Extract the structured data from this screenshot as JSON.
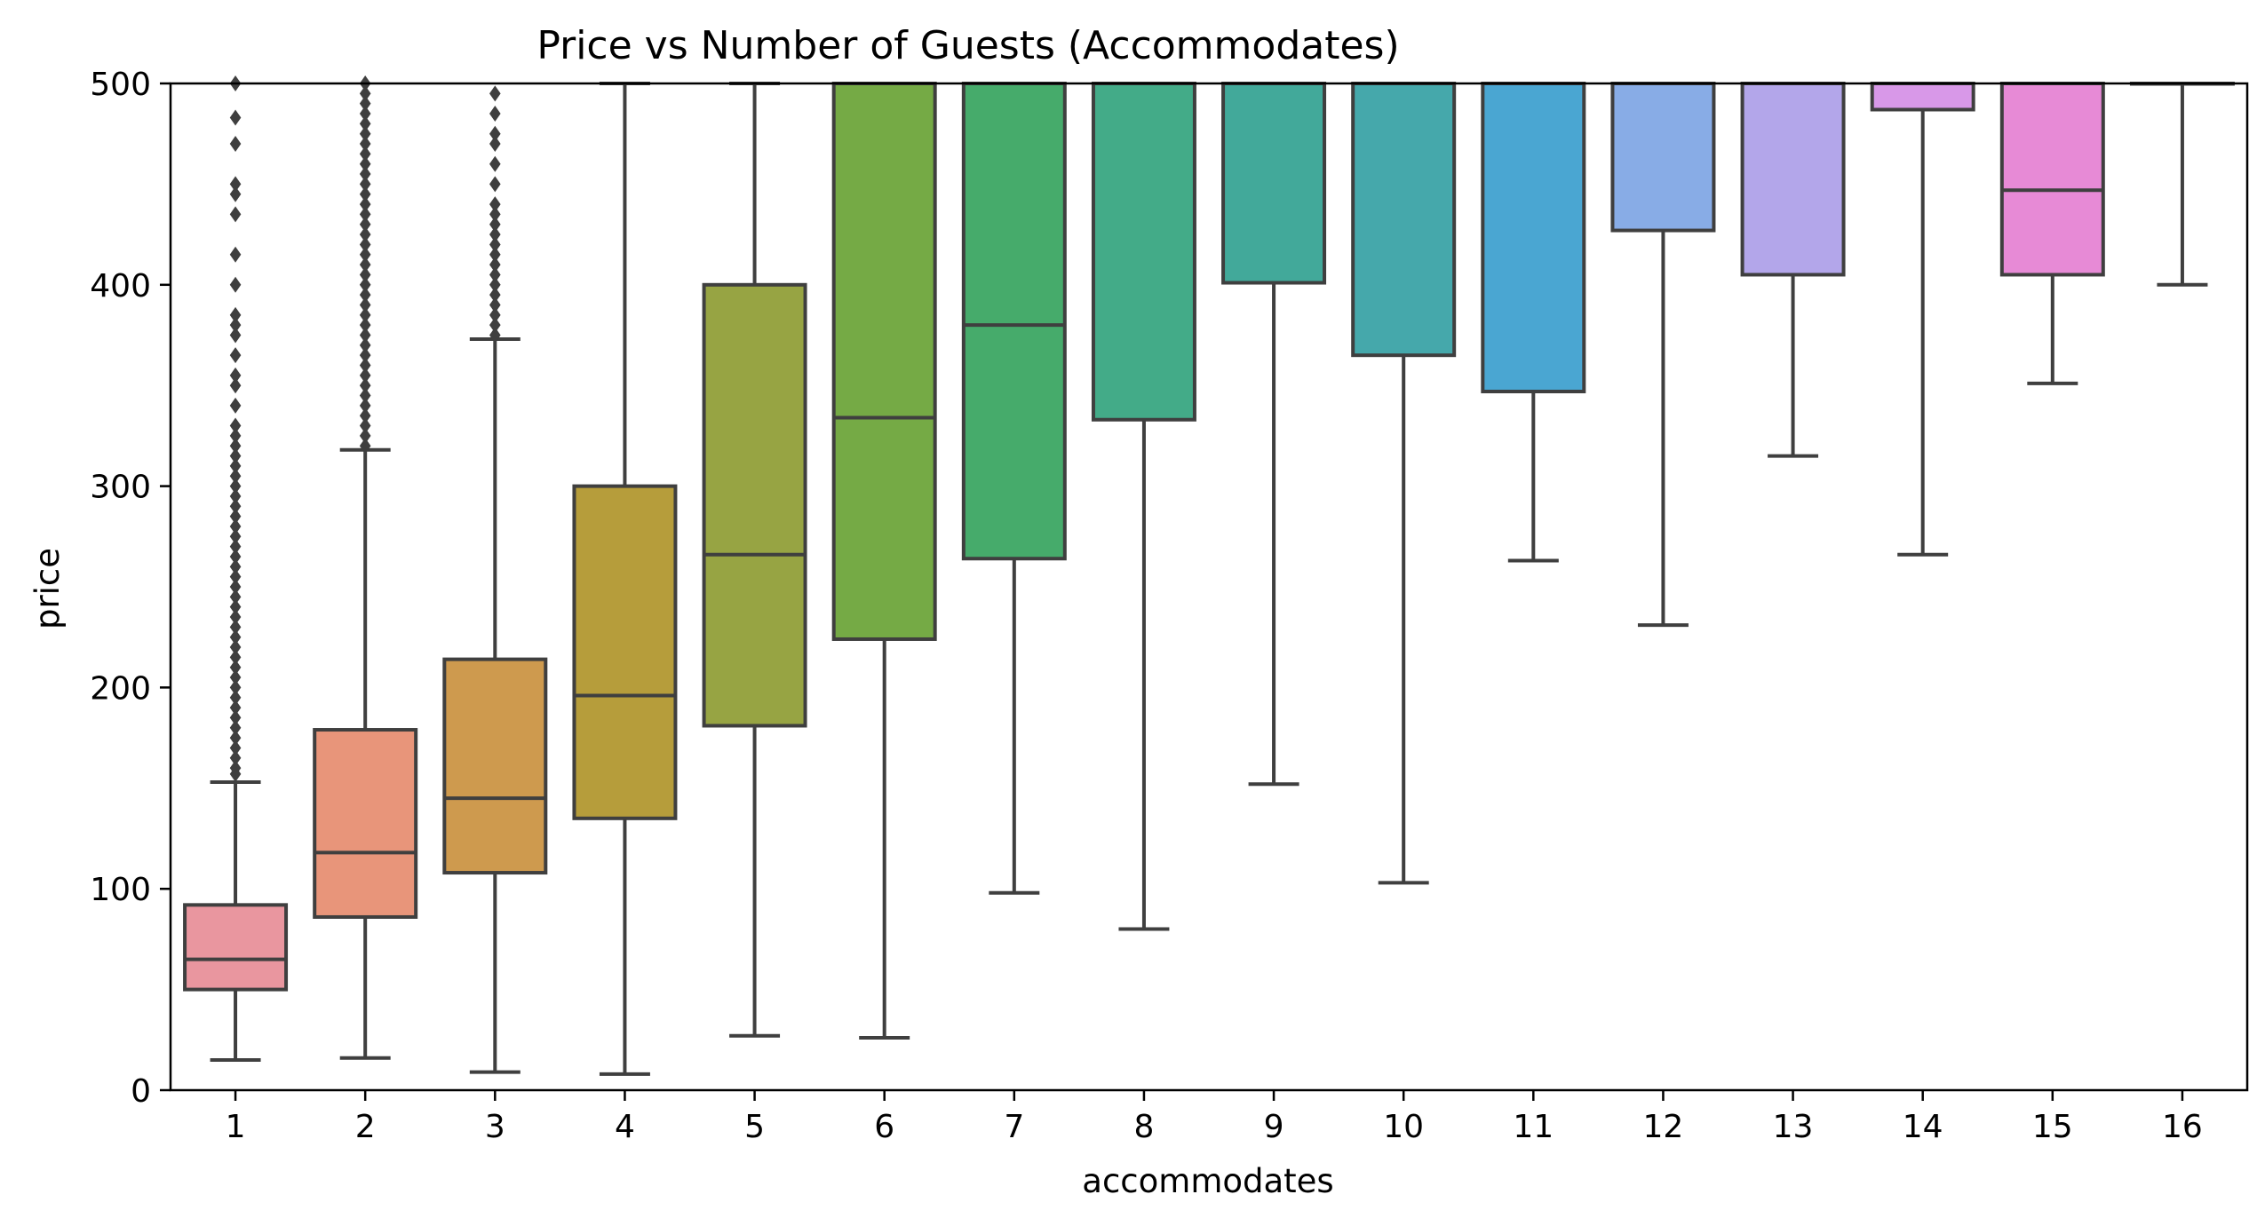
{
  "chart_data": {
    "type": "box",
    "title": "Price vs Number of Guests (Accommodates)",
    "xlabel": "accommodates",
    "ylabel": "price",
    "ylim": [
      0,
      500
    ],
    "yticks": [
      "0",
      "100",
      "200",
      "300",
      "400",
      "500"
    ],
    "grid": false,
    "legend": "none",
    "line_color": "#3f3f3f",
    "categories": [
      "1",
      "2",
      "3",
      "4",
      "5",
      "6",
      "7",
      "8",
      "9",
      "10",
      "11",
      "12",
      "13",
      "14",
      "15",
      "16"
    ],
    "boxes": [
      {
        "x": "1",
        "whisker_low": 15,
        "q1": 50,
        "median": 65,
        "q3": 92,
        "whisker_high": 153,
        "color": "#e9969f",
        "outliers": [
          157,
          160,
          165,
          170,
          175,
          180,
          185,
          190,
          195,
          200,
          205,
          210,
          215,
          220,
          225,
          230,
          235,
          240,
          245,
          250,
          255,
          260,
          265,
          270,
          275,
          280,
          285,
          290,
          295,
          300,
          305,
          310,
          315,
          320,
          325,
          330,
          340,
          350,
          355,
          365,
          375,
          380,
          385,
          400,
          415,
          435,
          445,
          450,
          470,
          483,
          500
        ]
      },
      {
        "x": "2",
        "whisker_low": 16,
        "q1": 86,
        "median": 118,
        "q3": 179,
        "whisker_high": 318,
        "color": "#e8957a",
        "outliers": [
          320,
          325,
          330,
          335,
          340,
          345,
          350,
          355,
          360,
          365,
          370,
          375,
          380,
          385,
          390,
          395,
          400,
          405,
          410,
          415,
          420,
          425,
          430,
          435,
          440,
          445,
          450,
          455,
          460,
          465,
          470,
          475,
          480,
          485,
          490,
          495,
          500
        ]
      },
      {
        "x": "3",
        "whisker_low": 9,
        "q1": 108,
        "median": 145,
        "q3": 214,
        "whisker_high": 373,
        "color": "#ce9a4e",
        "outliers": [
          375,
          380,
          385,
          390,
          395,
          400,
          405,
          410,
          415,
          420,
          425,
          430,
          435,
          440,
          450,
          460,
          470,
          475,
          485,
          495
        ]
      },
      {
        "x": "4",
        "whisker_low": 8,
        "q1": 135,
        "median": 196,
        "q3": 300,
        "whisker_high": 500,
        "color": "#b69d3b",
        "outliers": []
      },
      {
        "x": "5",
        "whisker_low": 27,
        "q1": 181,
        "median": 266,
        "q3": 400,
        "whisker_high": 500,
        "color": "#97a443",
        "outliers": []
      },
      {
        "x": "6",
        "whisker_low": 26,
        "q1": 224,
        "median": 334,
        "q3": 500,
        "whisker_high": 500,
        "color": "#75aa45",
        "outliers": []
      },
      {
        "x": "7",
        "whisker_low": 98,
        "q1": 264,
        "median": 380,
        "q3": 500,
        "whisker_high": 500,
        "color": "#46ab6b",
        "outliers": []
      },
      {
        "x": "8",
        "whisker_low": 80,
        "q1": 333,
        "median": 500,
        "q3": 500,
        "whisker_high": 500,
        "color": "#43ab88",
        "outliers": []
      },
      {
        "x": "9",
        "whisker_low": 152,
        "q1": 401,
        "median": 500,
        "q3": 500,
        "whisker_high": 500,
        "color": "#42a99a",
        "outliers": []
      },
      {
        "x": "10",
        "whisker_low": 103,
        "q1": 365,
        "median": 500,
        "q3": 500,
        "whisker_high": 500,
        "color": "#45a8ab",
        "outliers": []
      },
      {
        "x": "11",
        "whisker_low": 263,
        "q1": 347,
        "median": 500,
        "q3": 500,
        "whisker_high": 500,
        "color": "#4aa6d2",
        "outliers": []
      },
      {
        "x": "12",
        "whisker_low": 231,
        "q1": 427,
        "median": 500,
        "q3": 500,
        "whisker_high": 500,
        "color": "#88ace6",
        "outliers": []
      },
      {
        "x": "13",
        "whisker_low": 315,
        "q1": 405,
        "median": 500,
        "q3": 500,
        "whisker_high": 500,
        "color": "#b3a6ea",
        "outliers": []
      },
      {
        "x": "14",
        "whisker_low": 266,
        "q1": 487,
        "median": 500,
        "q3": 500,
        "whisker_high": 500,
        "color": "#d898e8",
        "outliers": []
      },
      {
        "x": "15",
        "whisker_low": 351,
        "q1": 405,
        "median": 447,
        "q3": 500,
        "whisker_high": 500,
        "color": "#e78ad6",
        "outliers": []
      },
      {
        "x": "16",
        "whisker_low": 400,
        "q1": 500,
        "median": 500,
        "q3": 500,
        "whisker_high": 500,
        "color": "#ea92c2",
        "outliers": []
      }
    ]
  }
}
